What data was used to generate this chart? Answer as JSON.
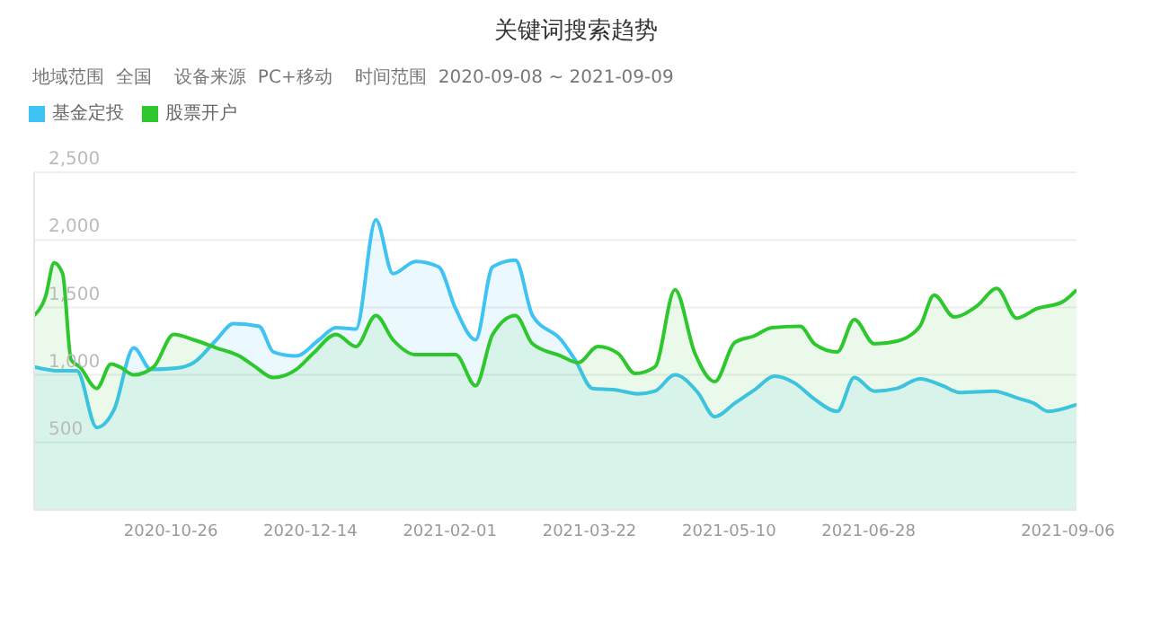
{
  "chart_data": {
    "type": "area",
    "title": "关键词搜索趋势",
    "subtitle": "地域范围  全国    设备来源  PC+移动    时间范围  2020-09-08 ~ 2021-09-09",
    "legend": "top left",
    "grid": "y",
    "xlim": [
      "2020-09-08",
      "2021-09-09"
    ],
    "xticks": [
      "2020-10-26",
      "2020-12-14",
      "2021-02-01",
      "2021-03-22",
      "2021-05-10",
      "2021-06-28",
      "2021-09-06"
    ],
    "ylim": [
      0,
      2500
    ],
    "yticks": [
      {
        "value": 500,
        "label": "500"
      },
      {
        "value": 1000,
        "label": "1,000"
      },
      {
        "value": 1500,
        "label": "1,500"
      },
      {
        "value": 2000,
        "label": "2,000"
      },
      {
        "value": 2500,
        "label": "2,500"
      }
    ],
    "series": [
      {
        "name": "基金定投",
        "color": "#3ec3f2",
        "x": [
          "2020-09-08",
          "2020-09-17",
          "2020-09-23",
          "2020-09-30",
          "2020-10-06",
          "2020-10-13",
          "2020-10-19",
          "2020-10-28",
          "2020-11-03",
          "2020-11-11",
          "2020-11-17",
          "2020-11-26",
          "2020-12-01",
          "2020-12-09",
          "2020-12-17",
          "2020-12-23",
          "2020-12-30",
          "2021-01-06",
          "2021-01-12",
          "2021-01-20",
          "2021-01-28",
          "2021-02-03",
          "2021-02-10",
          "2021-02-16",
          "2021-02-24",
          "2021-03-02",
          "2021-03-12",
          "2021-03-17",
          "2021-03-23",
          "2021-03-31",
          "2021-04-08",
          "2021-04-14",
          "2021-04-21",
          "2021-04-29",
          "2021-05-05",
          "2021-05-12",
          "2021-05-19",
          "2021-05-26",
          "2021-06-02",
          "2021-06-09",
          "2021-06-17",
          "2021-06-23",
          "2021-06-30",
          "2021-07-08",
          "2021-07-16",
          "2021-07-24",
          "2021-07-30",
          "2021-08-11",
          "2021-08-19",
          "2021-08-25",
          "2021-08-30",
          "2021-09-09"
        ],
        "values": [
          1060,
          1030,
          1030,
          610,
          740,
          1200,
          1040,
          1050,
          1090,
          1260,
          1380,
          1360,
          1170,
          1140,
          1260,
          1350,
          1340,
          2150,
          1750,
          1840,
          1800,
          1490,
          1260,
          1800,
          1850,
          1440,
          1260,
          1110,
          900,
          890,
          860,
          880,
          1000,
          870,
          690,
          790,
          890,
          990,
          940,
          820,
          730,
          980,
          880,
          900,
          970,
          920,
          870,
          880,
          830,
          790,
          730,
          780
        ]
      },
      {
        "name": "股票开户",
        "color": "#2ec82e",
        "x": [
          "2020-09-08",
          "2020-09-12",
          "2020-09-15",
          "2020-09-18",
          "2020-09-21",
          "2020-09-24",
          "2020-09-30",
          "2020-10-05",
          "2020-10-08",
          "2020-10-13",
          "2020-10-20",
          "2020-10-27",
          "2020-11-03",
          "2020-11-11",
          "2020-11-19",
          "2020-11-24",
          "2020-12-01",
          "2020-12-09",
          "2020-12-15",
          "2020-12-23",
          "2020-12-30",
          "2021-01-06",
          "2021-01-12",
          "2021-01-20",
          "2021-02-03",
          "2021-02-10",
          "2021-02-16",
          "2021-02-24",
          "2021-03-02",
          "2021-03-12",
          "2021-03-18",
          "2021-03-25",
          "2021-04-01",
          "2021-04-07",
          "2021-04-14",
          "2021-04-21",
          "2021-04-28",
          "2021-05-05",
          "2021-05-12",
          "2021-05-19",
          "2021-05-25",
          "2021-06-04",
          "2021-06-09",
          "2021-06-17",
          "2021-06-23",
          "2021-06-30",
          "2021-07-08",
          "2021-07-16",
          "2021-07-21",
          "2021-07-28",
          "2021-08-05",
          "2021-08-12",
          "2021-08-19",
          "2021-08-26",
          "2021-09-04",
          "2021-09-09"
        ],
        "values": [
          1440,
          1580,
          1830,
          1750,
          1110,
          1060,
          900,
          1080,
          1060,
          1000,
          1060,
          1300,
          1260,
          1200,
          1140,
          1070,
          980,
          1040,
          1160,
          1300,
          1210,
          1440,
          1260,
          1150,
          1150,
          920,
          1300,
          1440,
          1230,
          1140,
          1090,
          1210,
          1160,
          1010,
          1060,
          1630,
          1160,
          950,
          1240,
          1290,
          1350,
          1360,
          1230,
          1170,
          1410,
          1230,
          1250,
          1360,
          1590,
          1430,
          1510,
          1640,
          1420,
          1490,
          1540,
          1630
        ]
      }
    ]
  }
}
